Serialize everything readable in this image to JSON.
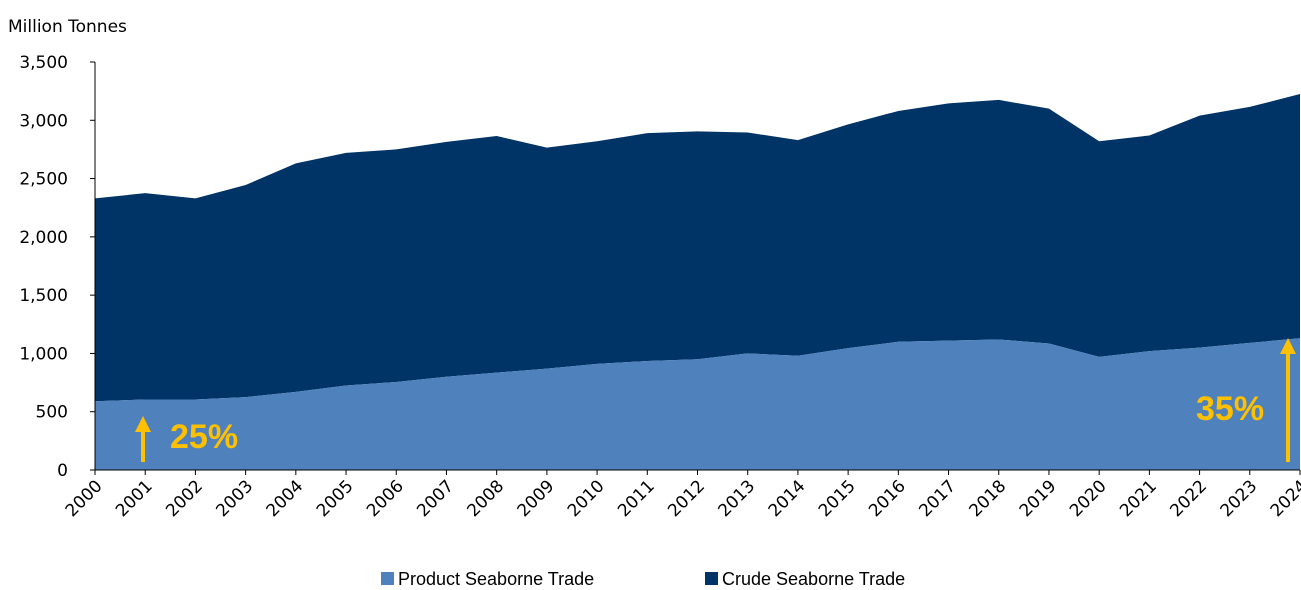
{
  "chart_data": {
    "type": "area",
    "stacked": true,
    "ylabel": "Million Tonnes",
    "ylim": [
      0,
      3500
    ],
    "yticks": [
      "0",
      "500",
      "1,000",
      "1,500",
      "2,000",
      "2,500",
      "3,000",
      "3,500"
    ],
    "ytick_values": [
      0,
      500,
      1000,
      1500,
      2000,
      2500,
      3000,
      3500
    ],
    "x": [
      "2000",
      "2001",
      "2002",
      "2003",
      "2004",
      "2005",
      "2006",
      "2007",
      "2008",
      "2009",
      "2010",
      "2011",
      "2012",
      "2013",
      "2014",
      "2015",
      "2016",
      "2017",
      "2018",
      "2019",
      "2020",
      "2021",
      "2022",
      "2023",
      "2024"
    ],
    "series": [
      {
        "name": "Product Seaborne Trade",
        "color": "#4f81bd",
        "values": [
          590,
          605,
          605,
          625,
          670,
          725,
          755,
          800,
          835,
          870,
          910,
          935,
          950,
          1000,
          980,
          1045,
          1100,
          1110,
          1120,
          1085,
          970,
          1020,
          1050,
          1090,
          1130
        ]
      },
      {
        "name": "Crude Seaborne Trade",
        "color": "#003366",
        "values": [
          1740,
          1770,
          1725,
          1820,
          1960,
          1995,
          1995,
          2015,
          2030,
          1895,
          1910,
          1955,
          1955,
          1895,
          1850,
          1920,
          1980,
          2035,
          2055,
          2015,
          1850,
          1850,
          1990,
          2025,
          2095
        ]
      }
    ],
    "legend_position": "bottom-center",
    "grid": false,
    "annotations": [
      {
        "text": "25%",
        "color": "#ffc000",
        "arrow": "up",
        "near_x": "2001"
      },
      {
        "text": "35%",
        "color": "#ffc000",
        "arrow": "up",
        "near_x": "2024"
      }
    ]
  },
  "legend": {
    "product_label": "Product Seaborne Trade",
    "crude_label": "Crude Seaborne Trade"
  }
}
